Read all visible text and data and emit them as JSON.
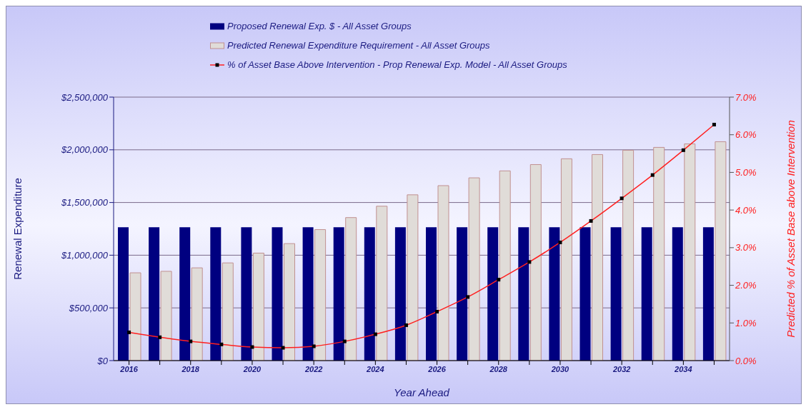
{
  "chart_data": {
    "type": "bar",
    "xlabel": "Year Ahead",
    "ylabel": "Renewal Expenditure",
    "y2label": "Predicted % of Asset Base above Intervention",
    "categories": [
      "2016",
      null,
      "2018",
      null,
      "2020",
      null,
      "2022",
      null,
      "2024",
      null,
      "2026",
      null,
      "2028",
      null,
      "2030",
      null,
      "2032",
      null,
      "2034",
      null
    ],
    "series": [
      {
        "name": "Proposed Renewal Exp. $ -  All Asset Groups",
        "color": "#000080",
        "values": [
          1265000,
          1265000,
          1265000,
          1265000,
          1265000,
          1265000,
          1265000,
          1265000,
          1265000,
          1265000,
          1265000,
          1265000,
          1265000,
          1265000,
          1265000,
          1265000,
          1265000,
          1265000,
          1265000,
          1265000
        ]
      },
      {
        "name": "Predicted Renewal Expenditure Requirement -  All Asset Groups",
        "color": "#e0dcd8",
        "values": [
          833000,
          847000,
          880000,
          927000,
          1020000,
          1110000,
          1243000,
          1357000,
          1465000,
          1573000,
          1660000,
          1734000,
          1800000,
          1860000,
          1915000,
          1955000,
          1996000,
          2023000,
          2056000,
          2077000
        ]
      },
      {
        "name": "% of Asset Base Above Intervention - Prop Renewal Exp. Model -  All Asset Groups",
        "type": "line",
        "axis": "y2",
        "color": "#ff2020",
        "marker": "square",
        "values": [
          0.75,
          0.62,
          0.51,
          0.43,
          0.36,
          0.34,
          0.38,
          0.51,
          0.7,
          0.94,
          1.3,
          1.69,
          2.15,
          2.62,
          3.14,
          3.71,
          4.31,
          4.93,
          5.59,
          6.27
        ]
      }
    ],
    "ylim": [
      0,
      2500000
    ],
    "yticks": [
      {
        "value": 0,
        "label": "$0"
      },
      {
        "value": 500000,
        "label": "$500,000"
      },
      {
        "value": 1000000,
        "label": "$1,000,000"
      },
      {
        "value": 1500000,
        "label": "$1,500,000"
      },
      {
        "value": 2000000,
        "label": "$2,000,000"
      },
      {
        "value": 2500000,
        "label": "$2,500,000"
      }
    ],
    "y2lim": [
      0,
      7
    ],
    "y2ticks": [
      {
        "value": 0,
        "label": "0.0%"
      },
      {
        "value": 1,
        "label": "1.0%"
      },
      {
        "value": 2,
        "label": "2.0%"
      },
      {
        "value": 3,
        "label": "3.0%"
      },
      {
        "value": 4,
        "label": "4.0%"
      },
      {
        "value": 5,
        "label": "5.0%"
      },
      {
        "value": 6,
        "label": "6.0%"
      },
      {
        "value": 7,
        "label": "7.0%"
      }
    ],
    "grid": "y",
    "legend": "top"
  }
}
